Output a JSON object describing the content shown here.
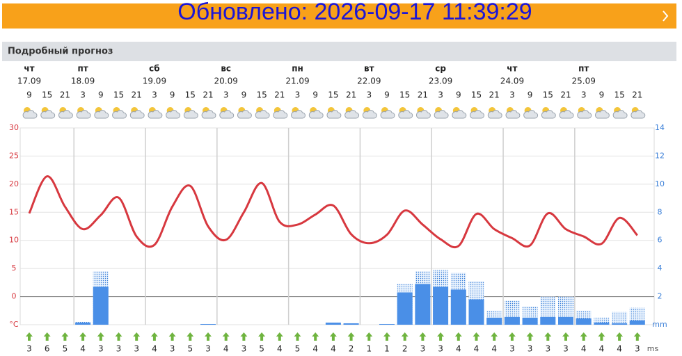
{
  "header": {
    "banner": "Обновлено: 2026-09-17 11:39:29"
  },
  "section_title": "Подробный прогноз",
  "chart_data": {
    "type": "line",
    "days": [
      {
        "weekday": "чт",
        "date": "17.09"
      },
      {
        "weekday": "пт",
        "date": "18.09"
      },
      {
        "weekday": "сб",
        "date": "19.09"
      },
      {
        "weekday": "вс",
        "date": "20.09"
      },
      {
        "weekday": "пн",
        "date": "21.09"
      },
      {
        "weekday": "вт",
        "date": "22.09"
      },
      {
        "weekday": "ср",
        "date": "23.09"
      },
      {
        "weekday": "чт",
        "date": "24.09"
      },
      {
        "weekday": "пт",
        "date": "25.09"
      }
    ],
    "hours": [
      9,
      15,
      21,
      3,
      9,
      15,
      21,
      3,
      9,
      15,
      21,
      3,
      9,
      15,
      21,
      3,
      9,
      15,
      21,
      3,
      9,
      15,
      21,
      3,
      9,
      15,
      21,
      3,
      9,
      15,
      21,
      3,
      9,
      15,
      21
    ],
    "series": [
      {
        "color": "#d7383f",
        "values": [
          14.8,
          21.4,
          16,
          12,
          14.5,
          17.6,
          10.7,
          9.2,
          16,
          19.7,
          12.5,
          10.1,
          15,
          20.2,
          13.3,
          12.8,
          14.6,
          16.2,
          11.1,
          9.5,
          11,
          15.3,
          12.8,
          10.2,
          9,
          14.7,
          12,
          10.4,
          9.1,
          14.8,
          12,
          10.7,
          9.4,
          14,
          10.9
        ]
      },
      {
        "type": "bar",
        "axis": "y2",
        "color": "#4a8fe7",
        "values": [
          0,
          0,
          0,
          0.15,
          2.7,
          0,
          0,
          0,
          0,
          0,
          0.05,
          0,
          0,
          0,
          0,
          0,
          0,
          0.15,
          0.1,
          0,
          0.05,
          2.3,
          2.9,
          2.7,
          2.5,
          1.8,
          0.5,
          0.55,
          0.5,
          0.55,
          0.55,
          0.45,
          0.15,
          0.1,
          0.3
        ],
        "max_values": [
          0,
          0,
          0,
          0.2,
          3.8,
          0,
          0,
          0,
          0,
          0,
          0.05,
          0,
          0,
          0,
          0,
          0,
          0,
          0.15,
          0.1,
          0,
          0.05,
          2.9,
          3.8,
          3.9,
          3.7,
          3.1,
          1,
          1.7,
          1.3,
          2,
          2,
          1,
          0.5,
          0.9,
          1.2
        ]
      }
    ],
    "wind": {
      "unit": "ms",
      "values": [
        3,
        6,
        5,
        4,
        3,
        3,
        3,
        4,
        3,
        5,
        3,
        4,
        3,
        5,
        4,
        5,
        4,
        4,
        2,
        1,
        1,
        2,
        3,
        3,
        4,
        4,
        4,
        3,
        3,
        3,
        3,
        4,
        4,
        4,
        3
      ]
    },
    "ylim": [
      -5,
      30
    ],
    "yticks": [
      {
        "value": -5,
        "label": "°C"
      },
      0,
      5,
      10,
      15,
      20,
      25,
      30
    ],
    "y2lim": [
      0,
      14
    ],
    "y2ticks": [
      {
        "value": 0,
        "label": "mm"
      },
      2,
      4,
      6,
      8,
      10,
      12,
      14
    ],
    "grid": true
  }
}
